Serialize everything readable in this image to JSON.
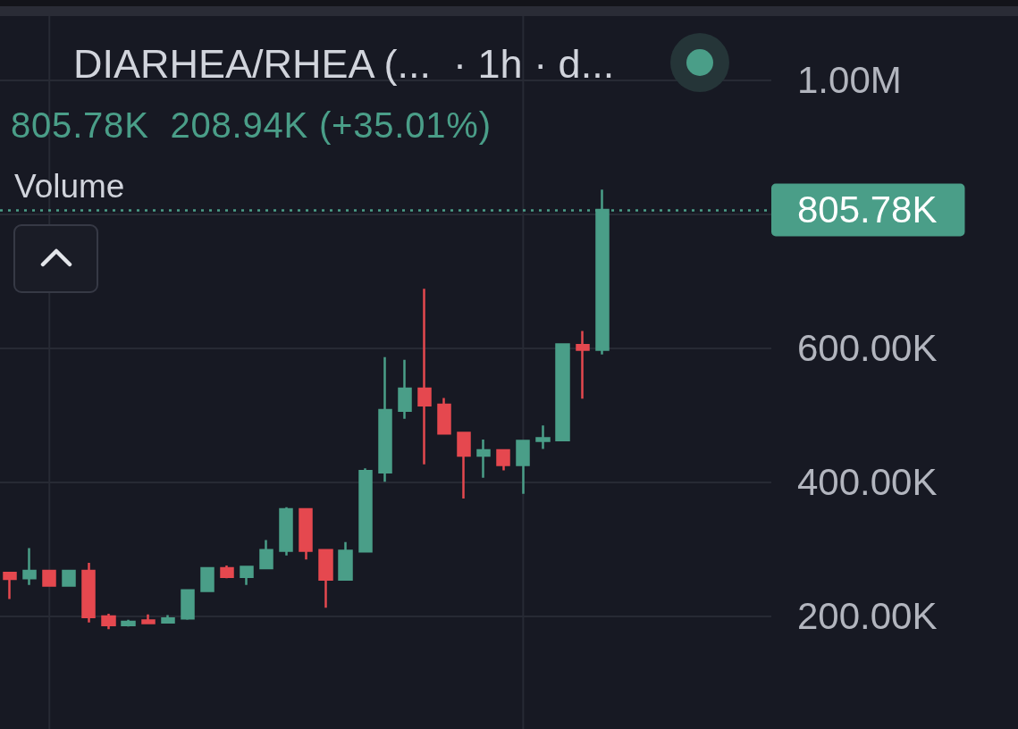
{
  "chart_data": {
    "type": "candlestick",
    "title": "DIARHEA/RHEA (...  · 1h · d...",
    "subtitle": "805.78K  208.94K (+35.01%)",
    "annotations": [
      "Volume"
    ],
    "categories": [
      null,
      null,
      null,
      null,
      null,
      null,
      null,
      null,
      null,
      null,
      null,
      null,
      null,
      null,
      null,
      null,
      null,
      null,
      null,
      null,
      null,
      null,
      null,
      null,
      null,
      null,
      null,
      null,
      null,
      null,
      null
    ],
    "ohlc": [
      [
        264000,
        264000,
        225000,
        255000
      ],
      [
        256000,
        301000,
        246000,
        267000
      ],
      [
        267000,
        267000,
        245000,
        245000
      ],
      [
        245000,
        267000,
        245000,
        267000
      ],
      [
        267000,
        279000,
        190000,
        198000
      ],
      [
        199000,
        203000,
        180000,
        186000
      ],
      [
        186000,
        194000,
        184000,
        191000
      ],
      [
        193000,
        202000,
        189000,
        189000
      ],
      [
        190000,
        201000,
        190000,
        196000
      ],
      [
        196000,
        239000,
        194000,
        238000
      ],
      [
        237000,
        271000,
        237000,
        271000
      ],
      [
        271000,
        275000,
        256000,
        258000
      ],
      [
        258000,
        273000,
        246000,
        273000
      ],
      [
        271000,
        313000,
        271000,
        298000
      ],
      [
        297000,
        362000,
        290000,
        359000
      ],
      [
        359000,
        359000,
        284000,
        297000
      ],
      [
        298000,
        298000,
        212000,
        254000
      ],
      [
        254000,
        310000,
        254000,
        297000
      ],
      [
        296000,
        420000,
        296000,
        416000
      ],
      [
        414000,
        586000,
        400000,
        507000
      ],
      [
        506000,
        582000,
        494000,
        539000
      ],
      [
        539000,
        688000,
        426000,
        514000
      ],
      [
        515000,
        525000,
        472000,
        472000
      ],
      [
        473000,
        473000,
        375000,
        439000
      ],
      [
        439000,
        463000,
        406000,
        447000
      ],
      [
        447000,
        447000,
        417000,
        425000
      ],
      [
        425000,
        461000,
        382000,
        461000
      ],
      [
        461000,
        484000,
        449000,
        465000
      ],
      [
        462000,
        606000,
        462000,
        605000
      ],
      [
        604000,
        625000,
        524000,
        597000
      ],
      [
        597000,
        836000,
        590000,
        805780
      ]
    ],
    "colors": [
      "#e5484f",
      "#4a9e88",
      "#e5484f",
      "#4a9e88",
      "#e5484f",
      "#e5484f",
      "#4a9e88",
      "#e5484f",
      "#4a9e88",
      "#4a9e88",
      "#4a9e88",
      "#e5484f",
      "#4a9e88",
      "#4a9e88",
      "#4a9e88",
      "#e5484f",
      "#e5484f",
      "#4a9e88",
      "#4a9e88",
      "#4a9e88",
      "#4a9e88",
      "#e5484f",
      "#e5484f",
      "#e5484f",
      "#4a9e88",
      "#e5484f",
      "#4a9e88",
      "#4a9e88",
      "#4a9e88",
      "#e5484f",
      "#4a9e88"
    ],
    "ylim": [
      31000,
      1095000
    ],
    "yticks": [
      {
        "value": 200000,
        "label": "200.00K"
      },
      {
        "value": 400000,
        "label": "400.00K"
      },
      {
        "value": 600000,
        "label": "600.00K"
      },
      {
        "value": 800000,
        "label": null
      },
      {
        "value": 1000000,
        "label": "1.00M"
      }
    ],
    "ref_lines": [
      {
        "axis": "y",
        "value": 805780,
        "label": "805.78K",
        "color": "#4a9e88",
        "line_style": "dotted"
      }
    ],
    "grid": true,
    "tick_labels": "y"
  }
}
